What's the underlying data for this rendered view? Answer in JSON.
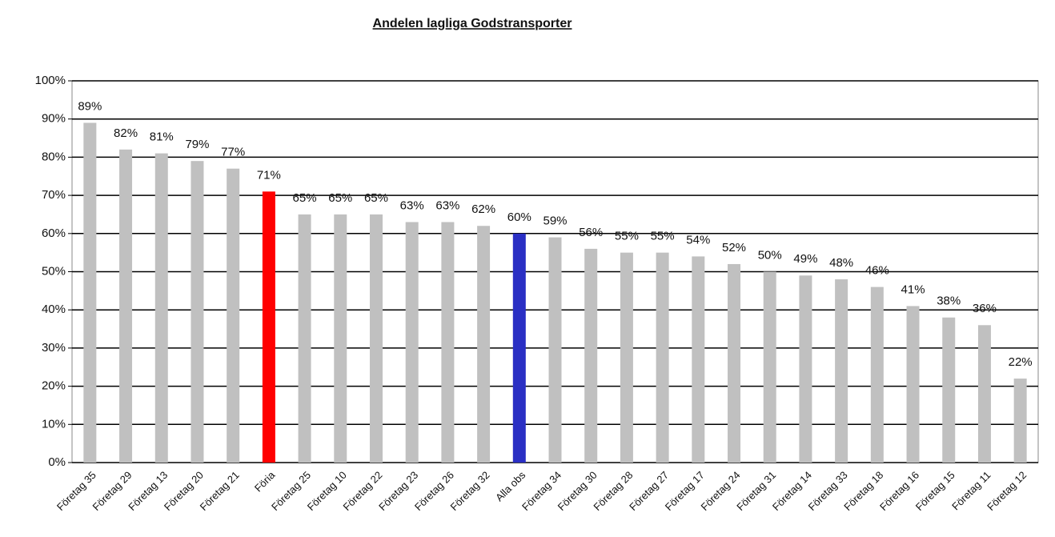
{
  "chart_data": {
    "type": "bar",
    "title": "Andelen lagliga Godstransporter",
    "categories": [
      "Företag 35",
      "Företag 29",
      "Företag 13",
      "Företag 20",
      "Företag 21",
      "Föria",
      "Företag 25",
      "Företag 10",
      "Företag 22",
      "Företag 23",
      "Företag 26",
      "Företag 32",
      "Alla obs",
      "Företag 34",
      "Företag 30",
      "Företag 28",
      "Företag 27",
      "Företag 17",
      "Företag 24",
      "Företag 31",
      "Företag 14",
      "Företag 33",
      "Företag 18",
      "Företag 16",
      "Företag 15",
      "Företag 11",
      "Företag 12"
    ],
    "values": [
      89,
      82,
      81,
      79,
      77,
      71,
      65,
      65,
      65,
      63,
      63,
      62,
      60,
      59,
      56,
      55,
      55,
      54,
      52,
      50,
      49,
      48,
      46,
      41,
      38,
      36,
      22
    ],
    "value_labels": [
      "89%",
      "82%",
      "81%",
      "79%",
      "77%",
      "71%",
      "65%",
      "65%",
      "65%",
      "63%",
      "63%",
      "62%",
      "60%",
      "59%",
      "56%",
      "55%",
      "55%",
      "54%",
      "52%",
      "50%",
      "49%",
      "48%",
      "46%",
      "41%",
      "38%",
      "36%",
      "22%"
    ],
    "colors": [
      "#c0c0c0",
      "#c0c0c0",
      "#c0c0c0",
      "#c0c0c0",
      "#c0c0c0",
      "#ff0000",
      "#c0c0c0",
      "#c0c0c0",
      "#c0c0c0",
      "#c0c0c0",
      "#c0c0c0",
      "#c0c0c0",
      "#2a2fc4",
      "#c0c0c0",
      "#c0c0c0",
      "#c0c0c0",
      "#c0c0c0",
      "#c0c0c0",
      "#c0c0c0",
      "#c0c0c0",
      "#c0c0c0",
      "#c0c0c0",
      "#c0c0c0",
      "#c0c0c0",
      "#c0c0c0",
      "#c0c0c0",
      "#c0c0c0"
    ],
    "ylim": [
      0,
      100
    ],
    "yticks": [
      {
        "value": 0,
        "label": "0%"
      },
      {
        "value": 10,
        "label": "10%"
      },
      {
        "value": 20,
        "label": "20%"
      },
      {
        "value": 30,
        "label": "30%"
      },
      {
        "value": 40,
        "label": "40%"
      },
      {
        "value": 50,
        "label": "50%"
      },
      {
        "value": 60,
        "label": "60%"
      },
      {
        "value": 70,
        "label": "70%"
      },
      {
        "value": 80,
        "label": "80%"
      },
      {
        "value": 90,
        "label": "90%"
      },
      {
        "value": 100,
        "label": "100%"
      }
    ],
    "grid": true
  }
}
